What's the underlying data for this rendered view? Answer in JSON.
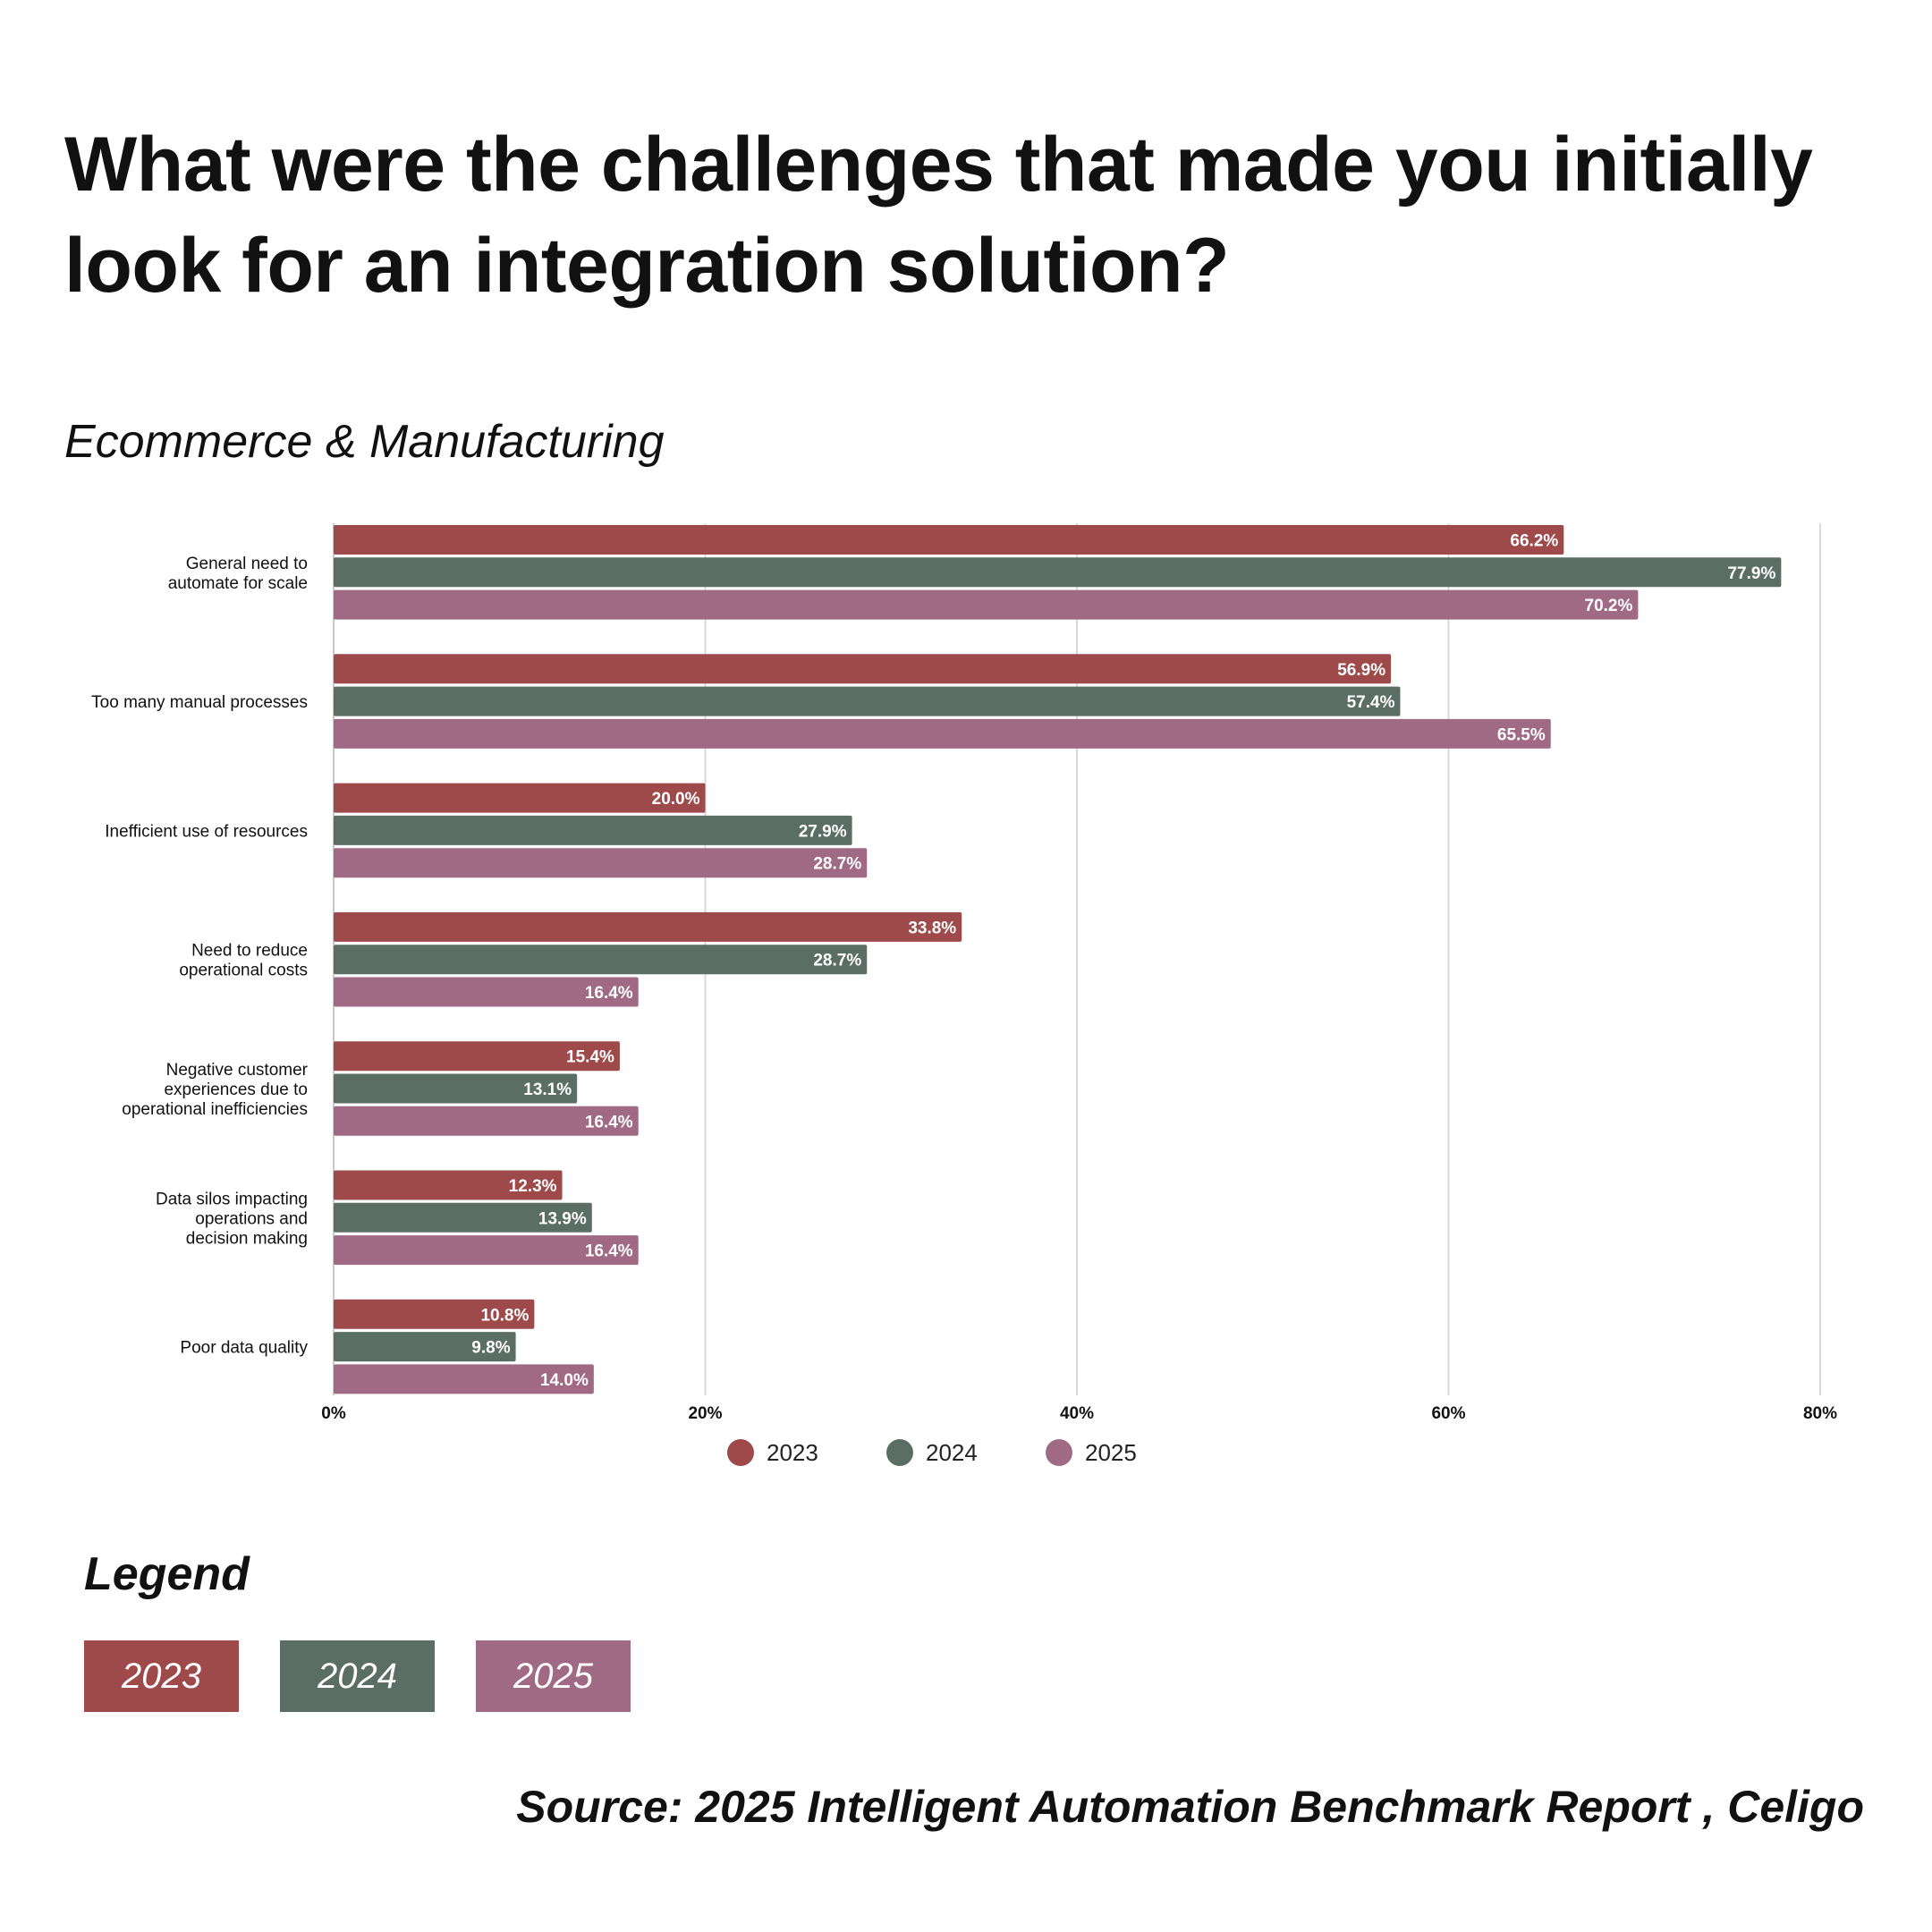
{
  "title": "What were the challenges that made you initially look for an integration solution?",
  "subtitle": "Ecommerce & Manufacturing",
  "chart_data": {
    "type": "bar",
    "orientation": "horizontal",
    "categories": [
      [
        "General need to",
        "automate for scale"
      ],
      [
        "Too many manual processes"
      ],
      [
        "Inefficient use of resources"
      ],
      [
        "Need to reduce",
        "operational costs"
      ],
      [
        "Negative customer",
        "experiences due to",
        "operational inefficiencies"
      ],
      [
        "Data silos impacting",
        "operations and",
        "decision making"
      ],
      [
        "Poor data quality"
      ]
    ],
    "series": [
      {
        "name": "2023",
        "color": "#9e4a4b",
        "values": [
          66.2,
          56.9,
          20.0,
          33.8,
          15.4,
          12.3,
          10.8
        ]
      },
      {
        "name": "2024",
        "color": "#5a6e66",
        "values": [
          77.9,
          57.4,
          27.9,
          28.7,
          13.1,
          13.9,
          9.8
        ]
      },
      {
        "name": "2025",
        "color": "#a06a85",
        "values": [
          70.2,
          65.5,
          28.7,
          16.4,
          16.4,
          16.4,
          14.0
        ]
      }
    ],
    "xlim": [
      0,
      80
    ],
    "xticks": [
      {
        "value": 0,
        "label": "0%"
      },
      {
        "value": 20,
        "label": "20%"
      },
      {
        "value": 40,
        "label": "40%"
      },
      {
        "value": 60,
        "label": "60%"
      },
      {
        "value": 80,
        "label": "80%"
      }
    ],
    "value_suffix": "%",
    "grid": true,
    "legend": "bottom-center"
  },
  "legend_section": {
    "heading": "Legend",
    "items": [
      {
        "label": "2023",
        "color": "#9e4a4b"
      },
      {
        "label": "2024",
        "color": "#5a6e66"
      },
      {
        "label": "2025",
        "color": "#a06a85"
      }
    ]
  },
  "source": "Source: 2025 Intelligent Automation Benchmark Report , Celigo"
}
